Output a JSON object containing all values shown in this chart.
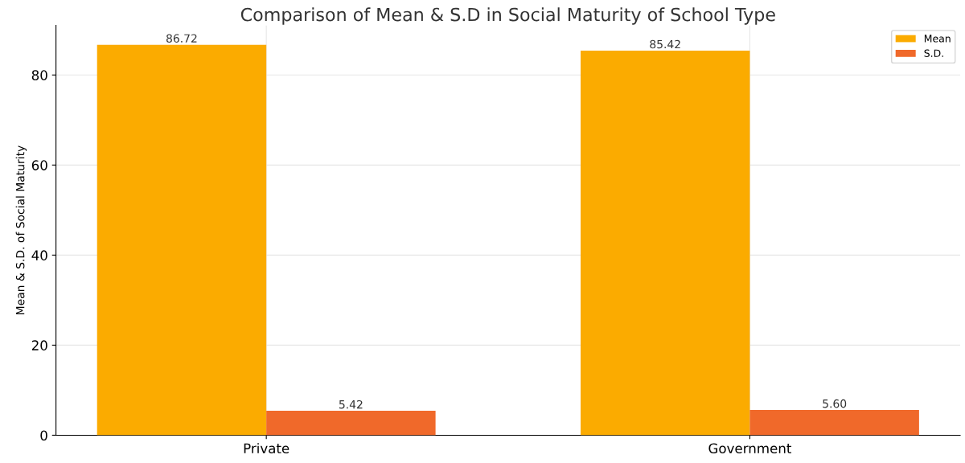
{
  "chart_data": {
    "type": "bar",
    "title": "Comparison of Mean & S.D in Social Maturity of School Type",
    "ylabel": "Mean & S.D. of Social Maturity",
    "categories": [
      "Private",
      "Government"
    ],
    "series": [
      {
        "name": "Mean",
        "color": "#fbab00",
        "values": [
          86.72,
          85.42
        ],
        "value_labels": [
          "86.72",
          "85.42"
        ]
      },
      {
        "name": "S.D.",
        "color": "#f0692a",
        "values": [
          5.42,
          5.6
        ],
        "value_labels": [
          "5.42",
          "5.60"
        ]
      }
    ],
    "ylim": [
      0,
      91
    ],
    "yticks": [
      0,
      20,
      40,
      60,
      80
    ],
    "grid": true,
    "legend": "top right"
  }
}
